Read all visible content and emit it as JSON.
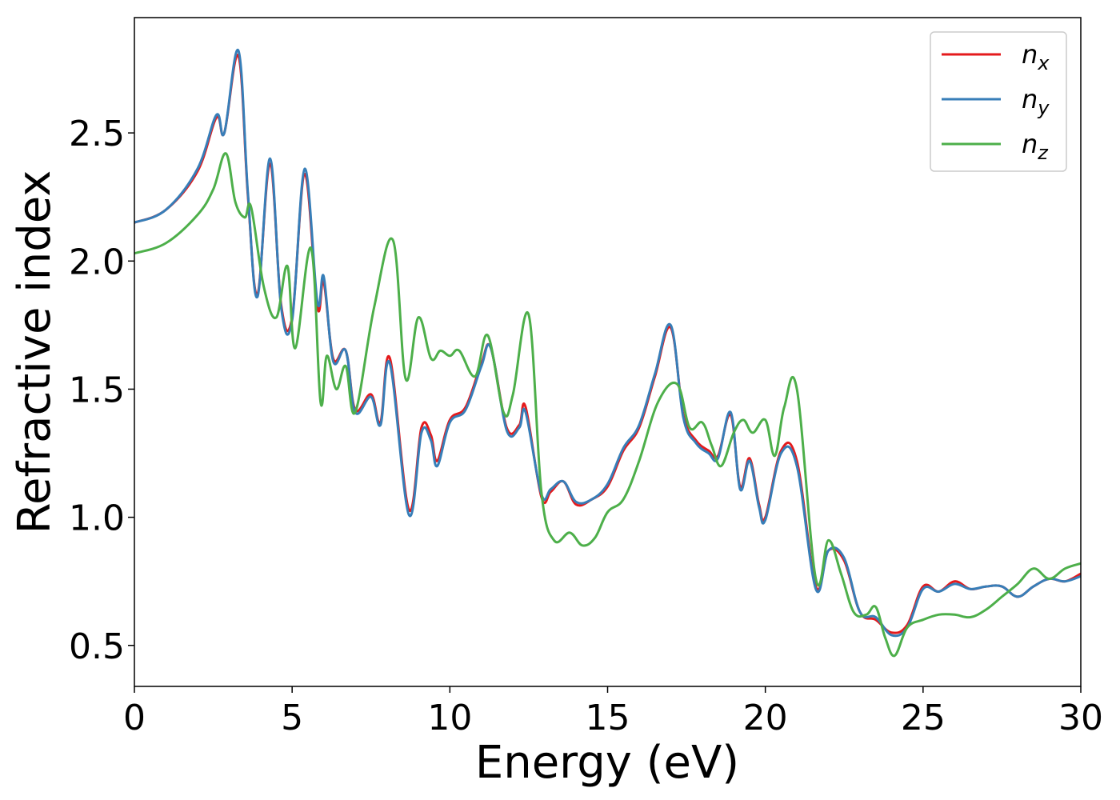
{
  "chart_data": {
    "type": "line",
    "title": "",
    "xlabel": "Energy (eV)",
    "ylabel": "Refractive index",
    "xlim": [
      0,
      30
    ],
    "ylim": [
      0.34,
      2.95
    ],
    "xticks": [
      0,
      5,
      10,
      15,
      20,
      25,
      30
    ],
    "yticks": [
      0.5,
      1.0,
      1.5,
      2.0,
      2.5
    ],
    "xtick_labels": [
      "0",
      "5",
      "10",
      "15",
      "20",
      "25",
      "30"
    ],
    "ytick_labels": [
      "0.5",
      "1.0",
      "1.5",
      "2.0",
      "2.5"
    ],
    "grid": false,
    "legend_position": "top-right",
    "series": [
      {
        "name": "n",
        "subscript": "x",
        "color": "#e41a1c",
        "x": [
          0,
          1,
          2,
          2.6,
          2.85,
          3.3,
          3.6,
          3.9,
          4.3,
          4.65,
          5.0,
          5.4,
          5.8,
          6.0,
          6.3,
          6.7,
          7.0,
          7.5,
          7.8,
          8.1,
          8.7,
          9.1,
          9.4,
          9.6,
          10.0,
          10.5,
          11.0,
          11.3,
          11.8,
          12.2,
          12.4,
          12.9,
          13.2,
          13.6,
          14.0,
          14.5,
          15.0,
          15.5,
          16.0,
          16.5,
          17.0,
          17.4,
          17.8,
          18.2,
          18.5,
          18.9,
          19.2,
          19.5,
          19.8,
          20.0,
          20.5,
          21.0,
          21.6,
          22.0,
          22.5,
          23.0,
          23.5,
          24.0,
          24.5,
          25.0,
          25.5,
          26.0,
          26.5,
          27.0,
          27.5,
          28.0,
          28.5,
          29.0,
          29.5,
          30.0
        ],
        "y": [
          2.15,
          2.2,
          2.35,
          2.56,
          2.5,
          2.8,
          2.25,
          1.87,
          2.38,
          1.83,
          1.78,
          2.34,
          1.82,
          1.92,
          1.62,
          1.65,
          1.42,
          1.48,
          1.37,
          1.62,
          1.03,
          1.35,
          1.32,
          1.22,
          1.38,
          1.43,
          1.6,
          1.66,
          1.35,
          1.36,
          1.43,
          1.08,
          1.1,
          1.14,
          1.05,
          1.07,
          1.12,
          1.26,
          1.35,
          1.55,
          1.74,
          1.4,
          1.3,
          1.26,
          1.24,
          1.4,
          1.12,
          1.23,
          1.05,
          1.0,
          1.26,
          1.22,
          0.73,
          0.87,
          0.83,
          0.63,
          0.6,
          0.55,
          0.58,
          0.73,
          0.71,
          0.75,
          0.72,
          0.73,
          0.73,
          0.69,
          0.73,
          0.76,
          0.75,
          0.78
        ]
      },
      {
        "name": "n",
        "subscript": "y",
        "color": "#377eb8",
        "x": [
          0,
          1,
          2,
          2.6,
          2.85,
          3.3,
          3.6,
          3.9,
          4.3,
          4.65,
          5.0,
          5.4,
          5.8,
          6.0,
          6.3,
          6.7,
          7.0,
          7.5,
          7.8,
          8.1,
          8.7,
          9.1,
          9.4,
          9.6,
          10.0,
          10.5,
          11.0,
          11.3,
          11.8,
          12.2,
          12.4,
          12.9,
          13.2,
          13.6,
          14.0,
          14.5,
          15.0,
          15.5,
          16.0,
          16.5,
          17.0,
          17.4,
          17.8,
          18.2,
          18.5,
          18.9,
          19.2,
          19.5,
          19.8,
          20.0,
          20.5,
          21.0,
          21.6,
          22.0,
          22.5,
          23.0,
          23.5,
          24.0,
          24.5,
          25.0,
          25.5,
          26.0,
          26.5,
          27.0,
          27.5,
          28.0,
          28.5,
          29.0,
          29.5,
          30.0
        ],
        "y": [
          2.15,
          2.2,
          2.36,
          2.57,
          2.5,
          2.82,
          2.26,
          1.86,
          2.4,
          1.82,
          1.77,
          2.36,
          1.84,
          1.94,
          1.61,
          1.65,
          1.41,
          1.47,
          1.36,
          1.6,
          1.01,
          1.33,
          1.3,
          1.2,
          1.37,
          1.42,
          1.59,
          1.66,
          1.34,
          1.35,
          1.41,
          1.09,
          1.11,
          1.14,
          1.06,
          1.07,
          1.13,
          1.27,
          1.36,
          1.56,
          1.75,
          1.39,
          1.29,
          1.25,
          1.23,
          1.41,
          1.11,
          1.22,
          1.04,
          0.99,
          1.25,
          1.2,
          0.72,
          0.87,
          0.84,
          0.63,
          0.61,
          0.54,
          0.57,
          0.72,
          0.71,
          0.74,
          0.72,
          0.73,
          0.73,
          0.69,
          0.73,
          0.76,
          0.75,
          0.77
        ]
      },
      {
        "name": "n",
        "subscript": "z",
        "color": "#4daf4a",
        "x": [
          0,
          1,
          2,
          2.5,
          2.9,
          3.2,
          3.5,
          3.7,
          4.1,
          4.5,
          4.85,
          5.1,
          5.6,
          5.9,
          6.1,
          6.4,
          6.7,
          7.0,
          7.6,
          8.2,
          8.6,
          9.0,
          9.4,
          9.7,
          10.0,
          10.3,
          10.8,
          11.2,
          11.7,
          12.0,
          12.5,
          12.9,
          13.3,
          13.8,
          14.2,
          14.6,
          15.0,
          15.5,
          16.0,
          16.6,
          17.2,
          17.6,
          18.0,
          18.3,
          18.6,
          19.0,
          19.3,
          19.6,
          20.0,
          20.3,
          20.6,
          21.0,
          21.6,
          22.0,
          22.4,
          22.8,
          23.2,
          23.5,
          23.8,
          24.1,
          24.5,
          25.0,
          25.5,
          26.0,
          26.5,
          27.0,
          27.5,
          28.0,
          28.5,
          29.0,
          29.5,
          30.0
        ],
        "y": [
          2.03,
          2.07,
          2.18,
          2.28,
          2.42,
          2.23,
          2.17,
          2.21,
          1.9,
          1.78,
          1.98,
          1.66,
          2.05,
          1.45,
          1.63,
          1.5,
          1.59,
          1.41,
          1.82,
          2.08,
          1.54,
          1.78,
          1.62,
          1.65,
          1.63,
          1.65,
          1.55,
          1.71,
          1.41,
          1.48,
          1.79,
          1.1,
          0.91,
          0.94,
          0.89,
          0.92,
          1.02,
          1.07,
          1.22,
          1.45,
          1.52,
          1.35,
          1.37,
          1.28,
          1.2,
          1.33,
          1.38,
          1.33,
          1.38,
          1.24,
          1.43,
          1.5,
          0.76,
          0.91,
          0.78,
          0.63,
          0.62,
          0.65,
          0.53,
          0.46,
          0.57,
          0.6,
          0.62,
          0.62,
          0.61,
          0.64,
          0.69,
          0.74,
          0.8,
          0.76,
          0.8,
          0.82
        ]
      }
    ]
  }
}
